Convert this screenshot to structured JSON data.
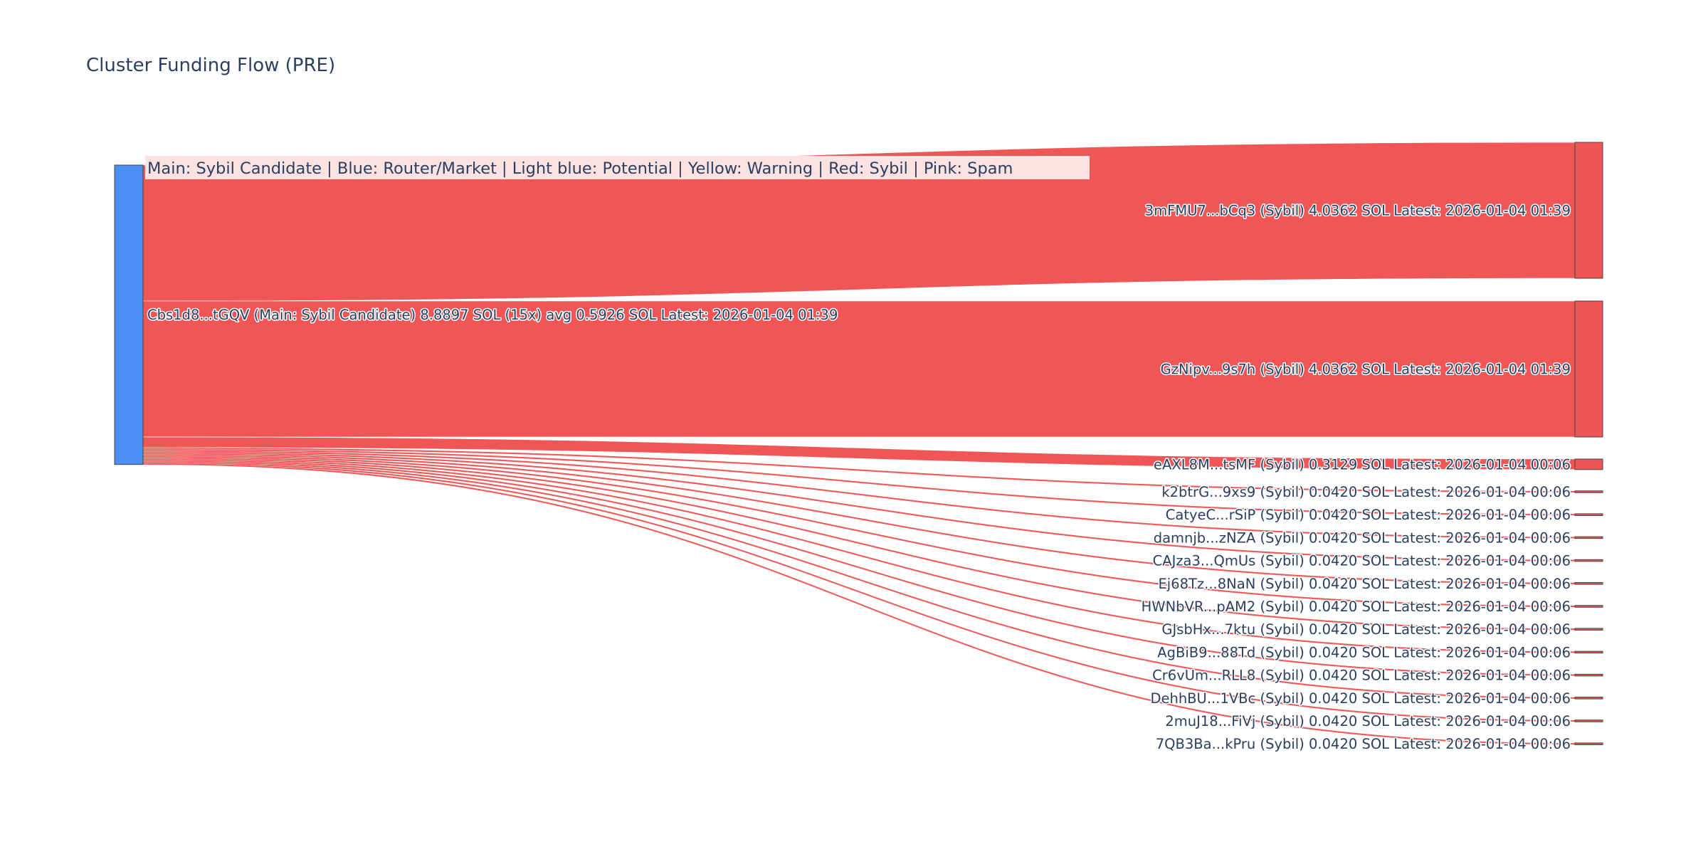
{
  "title": "Cluster Funding Flow (PRE)",
  "legend": "Main: Sybil Candidate  |  Blue: Router/Market | Light blue: Potential | Yellow: Warning | Red: Sybil | Pink: Spam",
  "colors": {
    "main_node": "#4d8ef4",
    "sybil_node": "#ef5555",
    "link": "#ef4444",
    "node_border": "#444444",
    "text": "#2a3f5f",
    "legend_bg": "#fde2e2"
  },
  "source": {
    "label": "Cbs1d8...tGQV (Main: Sybil Candidate) 8.8897 SOL (15x) avg 0.5926 SOL Latest: 2026-01-04 01:39",
    "role": "Main: Sybil Candidate",
    "total_sol": 8.8897,
    "tx_count": 15,
    "avg_sol": 0.5926,
    "latest": "2026-01-04 01:39"
  },
  "targets": [
    {
      "label": "3mFMU7...bCq3 (Sybil) 4.0362 SOL Latest: 2026-01-04 01:39",
      "value": 4.0362
    },
    {
      "label": "GzNipv...9s7h (Sybil) 4.0362 SOL Latest: 2026-01-04 01:39",
      "value": 4.0362
    },
    {
      "label": "eAXL8M...tsMF (Sybil) 0.3129 SOL Latest: 2026-01-04 00:06",
      "value": 0.3129
    },
    {
      "label": "k2btrG...9xs9 (Sybil) 0.0420 SOL Latest: 2026-01-04 00:06",
      "value": 0.042
    },
    {
      "label": "CatyeC...rSiP (Sybil) 0.0420 SOL Latest: 2026-01-04 00:06",
      "value": 0.042
    },
    {
      "label": "damnjb...zNZA (Sybil) 0.0420 SOL Latest: 2026-01-04 00:06",
      "value": 0.042
    },
    {
      "label": "CAJza3...QmUs (Sybil) 0.0420 SOL Latest: 2026-01-04 00:06",
      "value": 0.042
    },
    {
      "label": "Ej68Tz...8NaN (Sybil) 0.0420 SOL Latest: 2026-01-04 00:06",
      "value": 0.042
    },
    {
      "label": "HWNbVR...pAM2 (Sybil) 0.0420 SOL Latest: 2026-01-04 00:06",
      "value": 0.042
    },
    {
      "label": "GJsbHx...7ktu (Sybil) 0.0420 SOL Latest: 2026-01-04 00:06",
      "value": 0.042
    },
    {
      "label": "AgBiB9...88Td (Sybil) 0.0420 SOL Latest: 2026-01-04 00:06",
      "value": 0.042
    },
    {
      "label": "Cr6vUm...RLL8 (Sybil) 0.0420 SOL Latest: 2026-01-04 00:06",
      "value": 0.042
    },
    {
      "label": "DehhBU...1VBc (Sybil) 0.0420 SOL Latest: 2026-01-04 00:06",
      "value": 0.042
    },
    {
      "label": "2muJ18...FiVj (Sybil) 0.0420 SOL Latest: 2026-01-04 00:06",
      "value": 0.042
    },
    {
      "label": "7QB3Ba...kPru (Sybil) 0.0420 SOL Latest: 2026-01-04 00:06",
      "value": 0.042
    }
  ]
}
